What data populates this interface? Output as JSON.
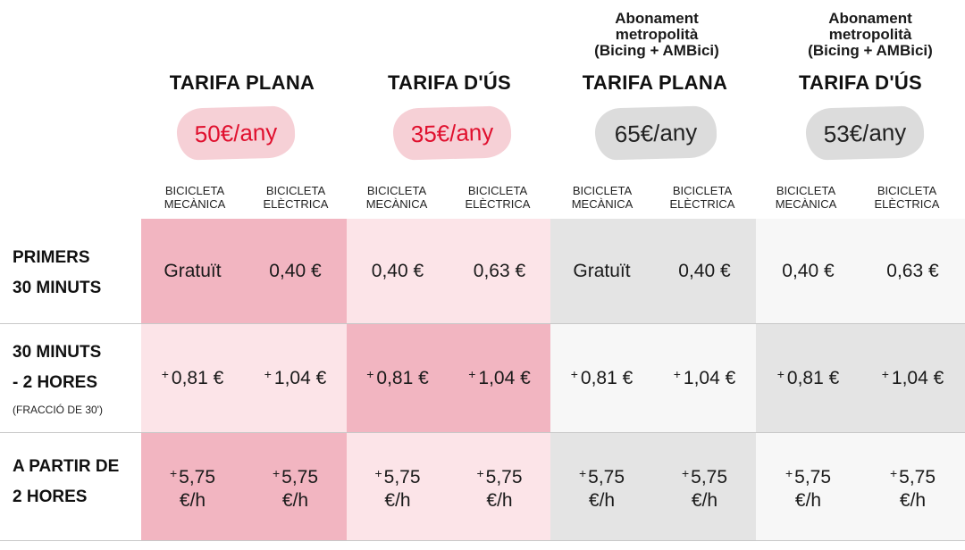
{
  "plans": [
    {
      "note": "",
      "title": "TARIFA PLANA",
      "price": "50€/any"
    },
    {
      "note": "",
      "title": "TARIFA D'ÚS",
      "price": "35€/any"
    },
    {
      "note": "Abonament\nmetropolità\n(Bicing + AMBici)",
      "title": "TARIFA PLANA",
      "price": "65€/any"
    },
    {
      "note": "Abonament\nmetropolità\n(Bicing + AMBici)",
      "title": "TARIFA D'ÚS",
      "price": "53€/any"
    }
  ],
  "colheads": {
    "mech": "BICICLETA\nMECÀNICA",
    "elec": "BICICLETA\nELÈCTRICA"
  },
  "rows": [
    {
      "label": "PRIMERS\n30 MINUTS",
      "sub": ""
    },
    {
      "label": "30 MINUTS\n- 2 HORES",
      "sub": "(FRACCIÓ DE 30')"
    },
    {
      "label": "A PARTIR DE\n2 HORES",
      "sub": ""
    }
  ],
  "cells": {
    "r1": [
      "Gratuït",
      "0,40 €",
      "0,40 €",
      "0,63 €",
      "Gratuït",
      "0,40 €",
      "0,40 €",
      "0,63 €"
    ],
    "r2": [
      "0,81 €",
      "1,04 €",
      "0,81 €",
      "1,04 €",
      "0,81 €",
      "1,04 €",
      "0,81 €",
      "1,04 €"
    ],
    "r3_amount": [
      "5,75",
      "5,75",
      "5,75",
      "5,75",
      "5,75",
      "5,75",
      "5,75",
      "5,75"
    ],
    "r3_unit": "€/h",
    "plus": "+"
  },
  "colors": {
    "pink_strong": "#f2b5c1",
    "pink_light": "#fce4e8",
    "gray_strong": "#e4e4e4",
    "gray_light": "#f7f7f7",
    "price_red": "#e0102e"
  }
}
